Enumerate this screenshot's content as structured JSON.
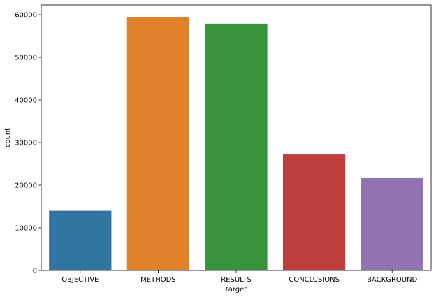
{
  "chart_data": {
    "type": "bar",
    "categories": [
      "OBJECTIVE",
      "METHODS",
      "RESULTS",
      "CONCLUSIONS",
      "BACKGROUND"
    ],
    "values": [
      14000,
      59400,
      57900,
      27200,
      21800
    ],
    "colors": [
      "#3274a1",
      "#e1812c",
      "#3a923a",
      "#c03d3e",
      "#9372b2"
    ],
    "xlabel": "target",
    "ylabel": "count",
    "ylim": [
      0,
      62300
    ],
    "yticks": [
      0,
      10000,
      20000,
      30000,
      40000,
      50000,
      60000
    ],
    "grid": false,
    "legend": "none"
  }
}
